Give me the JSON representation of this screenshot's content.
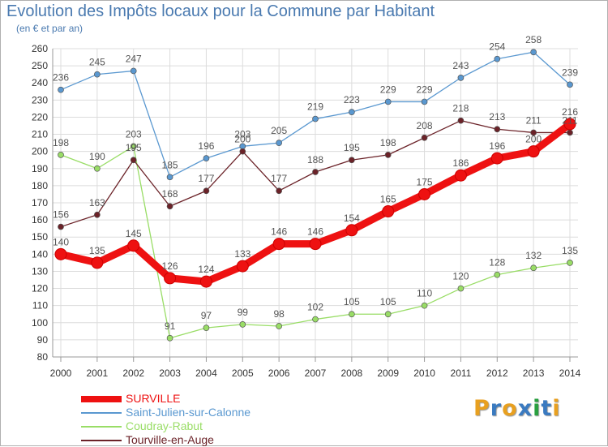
{
  "title": "Evolution des Impôts locaux pour la Commune par Habitant",
  "subtitle": "(en € et par an)",
  "logo": {
    "text": "Proxiti",
    "colors": [
      "#e8a020",
      "#3a7ac0",
      "#e8a020",
      "#3a7ac0",
      "#2aa040",
      "#3a7ac0",
      "#e8a020"
    ]
  },
  "chart_data": {
    "type": "line",
    "x": [
      2000,
      2001,
      2002,
      2003,
      2004,
      2005,
      2006,
      2007,
      2008,
      2009,
      2010,
      2011,
      2012,
      2013,
      2014
    ],
    "ylim": [
      80,
      260
    ],
    "yticks": [
      80,
      90,
      100,
      110,
      120,
      130,
      140,
      150,
      160,
      170,
      180,
      190,
      200,
      210,
      220,
      230,
      240,
      250,
      260
    ],
    "grid": true,
    "legend_position": "bottom-left",
    "series": [
      {
        "name": "SURVILLE",
        "color": "#ee1111",
        "values": [
          140,
          135,
          145,
          126,
          124,
          133,
          146,
          146,
          154,
          165,
          175,
          186,
          196,
          200,
          216
        ]
      },
      {
        "name": "Saint-Julien-sur-Calonne",
        "color": "#5a98d0",
        "values": [
          236,
          245,
          247,
          185,
          196,
          203,
          205,
          219,
          223,
          229,
          229,
          243,
          254,
          258,
          239
        ]
      },
      {
        "name": "Coudray-Rabut",
        "color": "#99dd66",
        "values": [
          198,
          190,
          203,
          91,
          97,
          99,
          98,
          102,
          105,
          105,
          110,
          120,
          128,
          132,
          135
        ]
      },
      {
        "name": "Tourville-en-Auge",
        "color": "#6b2228",
        "values": [
          156,
          163,
          195,
          168,
          177,
          200,
          177,
          188,
          195,
          198,
          208,
          218,
          213,
          211,
          211
        ]
      }
    ]
  }
}
